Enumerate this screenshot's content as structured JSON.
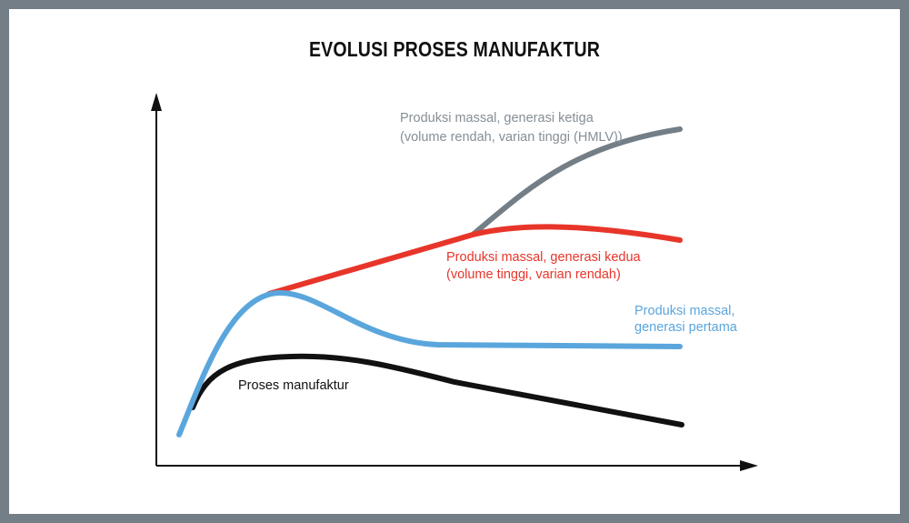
{
  "title": "EVOLUSI PROSES MANUFAKTUR",
  "labels": [
    {
      "lines": [
        "Produksi massal, generasi ketiga",
        "(volume rendah, varian tinggi (HMLV))"
      ]
    },
    {
      "lines": [
        "Produksi massal, generasi kedua",
        "(volume tinggi, varian rendah)"
      ]
    },
    {
      "lines": [
        "Produksi massal,",
        "generasi pertama"
      ]
    },
    {
      "lines": [
        "Proses manufaktur"
      ]
    }
  ]
}
